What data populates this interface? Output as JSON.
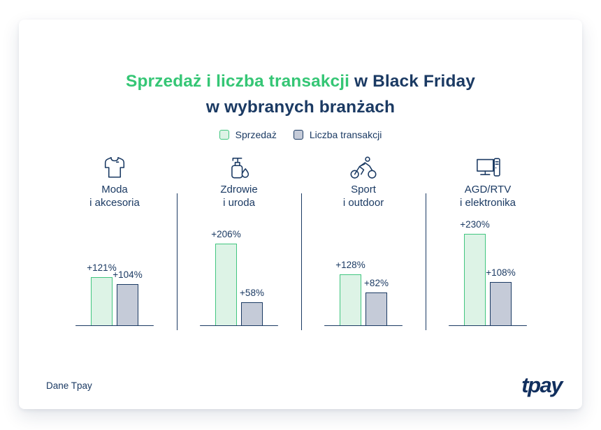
{
  "title": {
    "highlight": "Sprzedaż i liczba transakcji",
    "rest": " w Black Friday",
    "line2": "w wybranych branżach"
  },
  "legend": [
    {
      "label": "Sprzedaż",
      "swatch": "green"
    },
    {
      "label": "Liczba transakcji",
      "swatch": "gray"
    }
  ],
  "chart_data": {
    "type": "bar",
    "title": "Sprzedaż i liczba transakcji w Black Friday w wybranych branżach",
    "categories": [
      "Moda\ni akcesoria",
      "Zdrowie\ni uroda",
      "Sport\ni outdoor",
      "AGD/RTV\ni elektronika"
    ],
    "category_icons": [
      "tshirt-icon",
      "soap-pump-icon",
      "cyclist-icon",
      "computer-icon"
    ],
    "series": [
      {
        "name": "Sprzedaż",
        "values": [
          121,
          206,
          128,
          230
        ]
      },
      {
        "name": "Liczba transakcji",
        "values": [
          104,
          58,
          82,
          108
        ]
      }
    ],
    "value_label_format": "+{v}%",
    "unit": "% change",
    "legend_position": "top",
    "grid": false
  },
  "colors": {
    "accent_green": "#35c675",
    "navy": "#1b3a63",
    "green_fill": "#ddf3e6",
    "green_border": "#41c67f",
    "gray_fill": "#c5cbd8",
    "card_background": "#ffffff"
  },
  "footer": {
    "source": "Dane Tpay",
    "logo": "tpay"
  }
}
